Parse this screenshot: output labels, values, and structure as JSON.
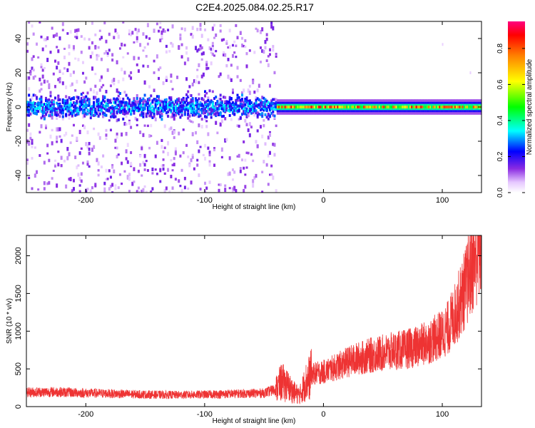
{
  "title": "C2E4.2025.084.02.25.R17",
  "chart_data": [
    {
      "type": "heatmap",
      "title": "C2E4.2025.084.02.25.R17",
      "xlabel": "Height of straight line (km)",
      "ylabel": "Frequency (Hz)",
      "xlim": [
        -250,
        133
      ],
      "ylim": [
        -50,
        50
      ],
      "x_ticks": [
        -200,
        -100,
        0,
        100
      ],
      "x_tick_labels": [
        "-200",
        "-100",
        "0",
        "100"
      ],
      "y_ticks": [
        -40,
        -20,
        0,
        20,
        40
      ],
      "y_tick_labels": [
        "-40",
        "-20",
        "0",
        "20",
        "40"
      ],
      "colorbar": {
        "label": "Normalized spectral amplitude",
        "range": [
          0,
          0.95
        ],
        "ticks": [
          0,
          0.2,
          0.4,
          0.6,
          0.8
        ],
        "tick_labels": [
          "0.0",
          "0.2",
          "0.4",
          "0.6",
          "0.8"
        ],
        "colormap": "rainbow"
      },
      "description_points": [
        {
          "x_range": [
            -250,
            -40
          ],
          "freq_center": 0,
          "freq_halfwidth_core": 8,
          "scatter_halfwidth": 50,
          "amplitude": 0.2
        },
        {
          "x_range": [
            -40,
            133
          ],
          "freq_center": 0,
          "freq_halfwidth_core": 3,
          "amplitude": 0.75
        }
      ],
      "grid": false
    },
    {
      "type": "line",
      "xlabel": "Height of straight line (km)",
      "ylabel": "SNR (10 * v/v)",
      "xlim": [
        -250,
        133
      ],
      "ylim": [
        0,
        2270
      ],
      "x_ticks": [
        -200,
        -100,
        0,
        100
      ],
      "x_tick_labels": [
        "-200",
        "-100",
        "0",
        "100"
      ],
      "y_ticks": [
        0,
        500,
        1000,
        1500,
        2000
      ],
      "y_tick_labels": [
        "0",
        "500",
        "1000",
        "1500",
        "2000"
      ],
      "color": "#ee3333",
      "series": [
        {
          "x": [
            -250,
            -225,
            -200,
            -175,
            -150,
            -125,
            -100,
            -75,
            -50,
            -40,
            -35,
            -30,
            -25,
            -20,
            -15,
            -10,
            0,
            10,
            20,
            30,
            40,
            50,
            60,
            70,
            80,
            90,
            100,
            105,
            110,
            115,
            120,
            125,
            130,
            133
          ],
          "values": [
            190,
            195,
            180,
            170,
            160,
            155,
            160,
            170,
            180,
            230,
            330,
            270,
            190,
            150,
            320,
            430,
            460,
            520,
            590,
            640,
            680,
            710,
            740,
            760,
            800,
            870,
            960,
            1050,
            1200,
            1390,
            1600,
            1850,
            2080,
            2150
          ]
        }
      ],
      "grid": false
    }
  ]
}
